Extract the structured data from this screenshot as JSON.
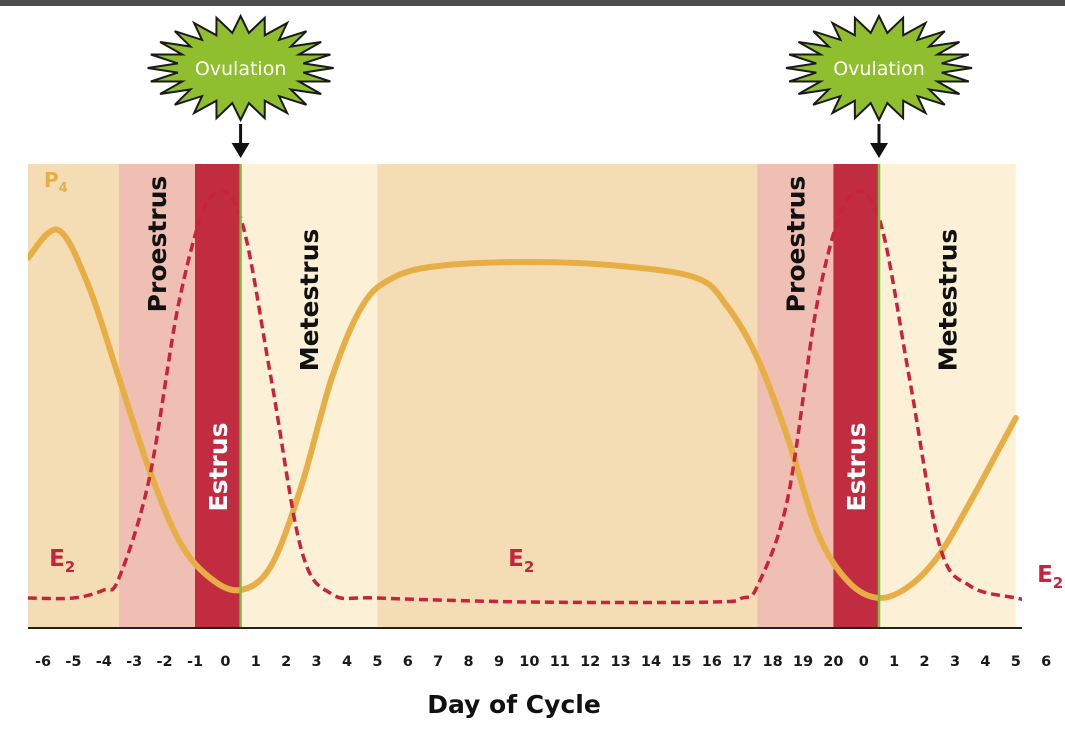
{
  "chart_data": {
    "type": "line",
    "xlabel": "Day of Cycle",
    "tick_labels": [
      "-6",
      "-5",
      "-4",
      "-3",
      "-2",
      "-1",
      "0",
      "1",
      "2",
      "3",
      "4",
      "5",
      "6",
      "7",
      "8",
      "9",
      "10",
      "11",
      "12",
      "13",
      "14",
      "15",
      "16",
      "17",
      "18",
      "19",
      "20",
      "0",
      "1",
      "2",
      "3",
      "4",
      "5",
      "6"
    ],
    "x_range": [
      -6.5,
      27.5
    ],
    "phases": [
      {
        "name": "Proestrus",
        "start": -3.5,
        "end": -1,
        "color": "#eebfb2"
      },
      {
        "name": "Estrus",
        "start": -1,
        "end": 0.5,
        "color": "#c12c40"
      },
      {
        "name": "Metestrus",
        "start": 0.5,
        "end": 5,
        "color": "#fcf1d6"
      },
      {
        "name": "Proestrus",
        "start": 17.5,
        "end": 20,
        "color": "#eebfb2"
      },
      {
        "name": "Estrus",
        "start": 20,
        "end": 21.5,
        "color": "#c12c40"
      },
      {
        "name": "Metestrus",
        "start": 21.5,
        "end": 26,
        "color": "#fcf1d6"
      }
    ],
    "diestrus_color": "#f4ddb4",
    "ovulation": [
      {
        "label": "Ovulation",
        "day": 0.5
      },
      {
        "label": "Ovulation",
        "day": 21.5
      }
    ],
    "series": [
      {
        "name": "P4",
        "label_main": "P",
        "label_sub": "4",
        "color": "#e7ae45",
        "style": "solid",
        "points": [
          [
            -6.5,
            0.85
          ],
          [
            -5.5,
            0.92
          ],
          [
            -4.5,
            0.78
          ],
          [
            -3.5,
            0.55
          ],
          [
            -2.5,
            0.32
          ],
          [
            -1.5,
            0.14
          ],
          [
            -0.5,
            0.05
          ],
          [
            0.5,
            0.02
          ],
          [
            1.5,
            0.08
          ],
          [
            2.5,
            0.28
          ],
          [
            3.5,
            0.55
          ],
          [
            4.5,
            0.73
          ],
          [
            5.5,
            0.8
          ],
          [
            7,
            0.83
          ],
          [
            10,
            0.84
          ],
          [
            13,
            0.83
          ],
          [
            15.5,
            0.8
          ],
          [
            16.5,
            0.73
          ],
          [
            17.5,
            0.6
          ],
          [
            18.5,
            0.4
          ],
          [
            19.5,
            0.16
          ],
          [
            20.5,
            0.04
          ],
          [
            21.5,
            0.0
          ],
          [
            22.5,
            0.03
          ],
          [
            23.5,
            0.11
          ],
          [
            24.5,
            0.24
          ],
          [
            25.5,
            0.38
          ],
          [
            26,
            0.45
          ]
        ]
      },
      {
        "name": "E2",
        "label_main": "E",
        "label_sub": "2",
        "color": "#c8233b",
        "style": "dashed",
        "label_positions": [
          [
            -5.8,
            0.08
          ],
          [
            9.3,
            0.08
          ],
          [
            26.7,
            0.04
          ]
        ],
        "points": [
          [
            -6.5,
            0.0
          ],
          [
            -5,
            0.0
          ],
          [
            -4,
            0.02
          ],
          [
            -3.5,
            0.05
          ],
          [
            -2.5,
            0.3
          ],
          [
            -1.5,
            0.75
          ],
          [
            -0.5,
            1.0
          ],
          [
            0.5,
            0.95
          ],
          [
            1.5,
            0.55
          ],
          [
            2.5,
            0.12
          ],
          [
            3.5,
            0.01
          ],
          [
            5,
            0.0
          ],
          [
            10,
            -0.01
          ],
          [
            16,
            -0.01
          ],
          [
            17,
            0.0
          ],
          [
            17.5,
            0.03
          ],
          [
            18.5,
            0.25
          ],
          [
            19.5,
            0.75
          ],
          [
            20.5,
            1.0
          ],
          [
            21.5,
            0.95
          ],
          [
            22.5,
            0.55
          ],
          [
            23.5,
            0.13
          ],
          [
            24.5,
            0.03
          ],
          [
            26,
            0.0
          ],
          [
            27.5,
            -0.02
          ]
        ]
      }
    ]
  }
}
